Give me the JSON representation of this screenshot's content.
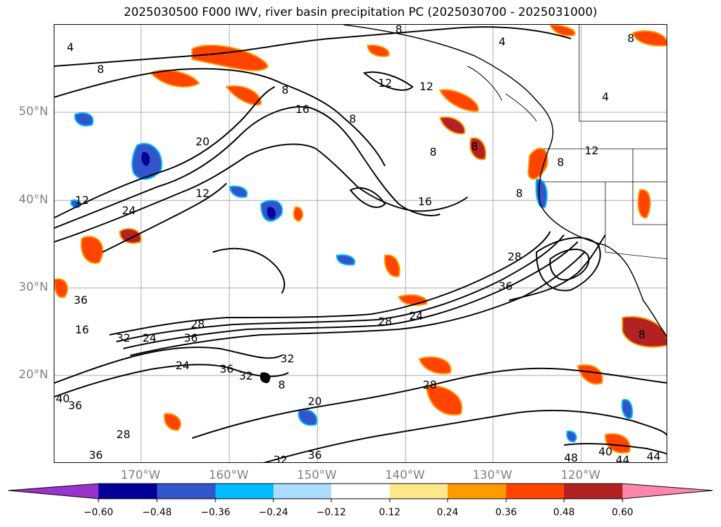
{
  "title": "2025030500 F000 IWV, river basin precipitation PC (2025030700 - 2025031000)",
  "lat_labels": [
    "50°N",
    "40°N",
    "30°N",
    "20°N"
  ],
  "lon_labels": [
    "170°W",
    "160°W",
    "150°W",
    "140°W",
    "130°W",
    "120°W"
  ],
  "colorbar": {
    "ticks": [
      "−0.60",
      "−0.48",
      "−0.36",
      "−0.24",
      "−0.12",
      "0.12",
      "0.24",
      "0.36",
      "0.48",
      "0.60"
    ],
    "colors": [
      "#9933cc",
      "#000099",
      "#3355cc",
      "#00bbff",
      "#aaddff",
      "#ffffff",
      "#ffe88a",
      "#ff9900",
      "#ff4400",
      "#b22222",
      "#ff88aa"
    ]
  },
  "contour_labels": [
    "4",
    "8",
    "8",
    "12",
    "16",
    "8",
    "20",
    "12",
    "24",
    "12",
    "8",
    "16",
    "8",
    "12",
    "28",
    "36",
    "36",
    "28",
    "24",
    "28",
    "36",
    "32",
    "24",
    "32",
    "28",
    "20",
    "36",
    "40",
    "36",
    "32",
    "36",
    "48",
    "40",
    "44",
    "44",
    "8",
    "4",
    "4",
    "8",
    "12",
    "8",
    "16",
    "36",
    "32",
    "28",
    "8",
    "8",
    "24",
    "8"
  ],
  "colors": {
    "contour": "#000000",
    "grid": "#aaaaaa",
    "tick_label": "#808080"
  }
}
